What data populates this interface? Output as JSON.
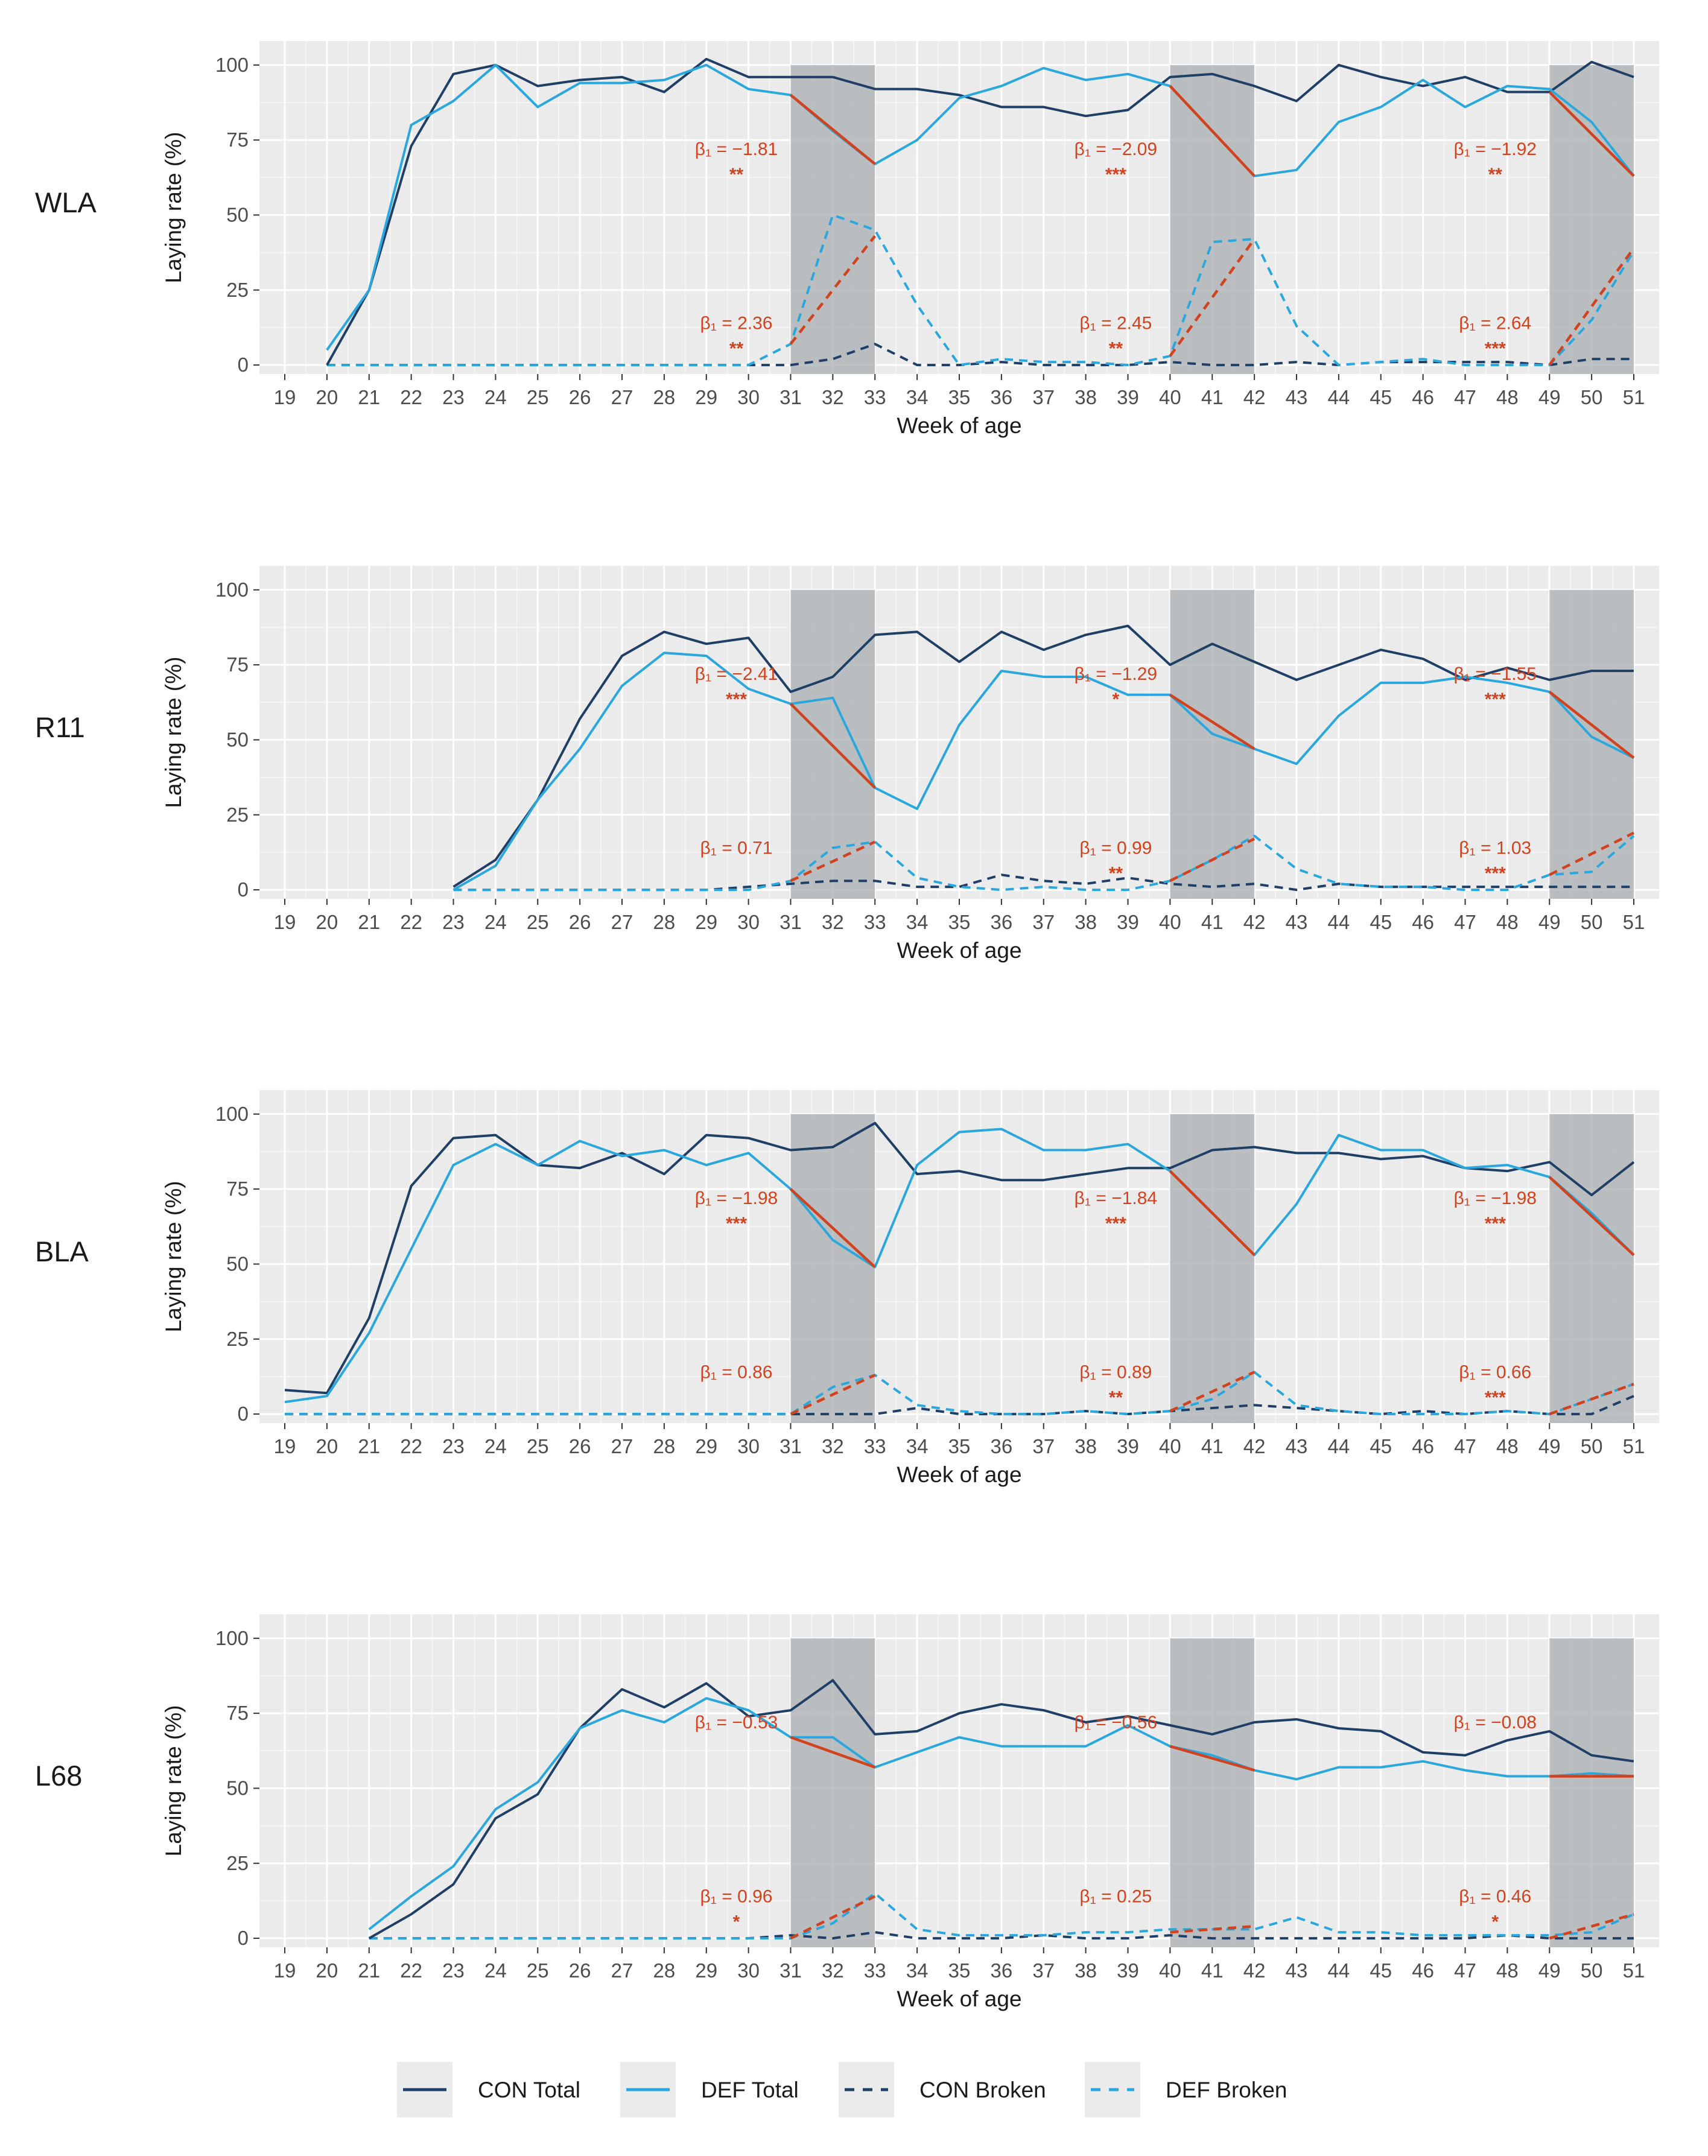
{
  "colors": {
    "panel_bg": "#EBEBEB",
    "grid": "#FFFFFF",
    "shade": "#A8AEB1",
    "con": "#1F3F66",
    "def": "#2AA7DC",
    "reg": "#D1421F",
    "axis_text": "#4D4D4D",
    "label_text": "#1A1A1A"
  },
  "chart_data": {
    "type": "line",
    "x_label": "Week of age",
    "y_label": "Laying rate (%)",
    "weeks": [
      19,
      20,
      21,
      22,
      23,
      24,
      25,
      26,
      27,
      28,
      29,
      30,
      31,
      32,
      33,
      34,
      35,
      36,
      37,
      38,
      39,
      40,
      41,
      42,
      43,
      44,
      45,
      46,
      47,
      48,
      49,
      50,
      51
    ],
    "y_ticks": [
      0,
      25,
      50,
      75,
      100
    ],
    "ylim": [
      -3,
      108
    ],
    "shaded_periods": [
      [
        31,
        33
      ],
      [
        40,
        42
      ],
      [
        49,
        51
      ]
    ],
    "legend": [
      {
        "key": "con_total",
        "label": "CON Total",
        "color": "#1F3F66",
        "dash": "solid"
      },
      {
        "key": "def_total",
        "label": "DEF Total",
        "color": "#2AA7DC",
        "dash": "solid"
      },
      {
        "key": "con_broken",
        "label": "CON Broken",
        "color": "#1F3F66",
        "dash": "dashed"
      },
      {
        "key": "def_broken",
        "label": "DEF Broken",
        "color": "#2AA7DC",
        "dash": "dashed"
      }
    ],
    "panels": [
      {
        "name": "WLA",
        "series": {
          "con_total": [
            null,
            0,
            25,
            73,
            97,
            100,
            93,
            95,
            96,
            91,
            102,
            96,
            96,
            96,
            92,
            92,
            90,
            86,
            86,
            83,
            85,
            96,
            97,
            93,
            88,
            100,
            96,
            93,
            96,
            91,
            91,
            101,
            96
          ],
          "def_total": [
            null,
            5,
            25,
            80,
            88,
            100,
            86,
            94,
            94,
            95,
            100,
            92,
            90,
            78,
            67,
            75,
            89,
            93,
            99,
            95,
            97,
            93,
            78,
            63,
            65,
            81,
            86,
            95,
            86,
            93,
            92,
            81,
            63
          ],
          "con_broken": [
            null,
            0,
            0,
            0,
            0,
            0,
            0,
            0,
            0,
            0,
            0,
            0,
            0,
            2,
            7,
            0,
            0,
            1,
            0,
            0,
            0,
            1,
            0,
            0,
            1,
            0,
            1,
            1,
            1,
            1,
            0,
            2,
            2
          ],
          "def_broken": [
            null,
            0,
            0,
            0,
            0,
            0,
            0,
            0,
            0,
            0,
            0,
            0,
            7,
            50,
            45,
            20,
            0,
            2,
            1,
            1,
            0,
            3,
            41,
            42,
            13,
            0,
            1,
            2,
            0,
            0,
            0,
            15,
            38
          ]
        },
        "regressions": [
          {
            "period": [
              31,
              33
            ],
            "kind": "total",
            "y": [
              90,
              67
            ],
            "beta": "β₁ = −1.81",
            "sig": "**"
          },
          {
            "period": [
              40,
              42
            ],
            "kind": "total",
            "y": [
              93,
              63
            ],
            "beta": "β₁ = −2.09",
            "sig": "***"
          },
          {
            "period": [
              49,
              51
            ],
            "kind": "total",
            "y": [
              91,
              63
            ],
            "beta": "β₁ = −1.92",
            "sig": "**"
          },
          {
            "period": [
              31,
              33
            ],
            "kind": "broken",
            "y": [
              7,
              43
            ],
            "beta": "β₁ = 2.36",
            "sig": "**"
          },
          {
            "period": [
              40,
              42
            ],
            "kind": "broken",
            "y": [
              3,
              42
            ],
            "beta": "β₁ = 2.45",
            "sig": "**"
          },
          {
            "period": [
              49,
              51
            ],
            "kind": "broken",
            "y": [
              0,
              39
            ],
            "beta": "β₁ = 2.64",
            "sig": "***"
          }
        ]
      },
      {
        "name": "R11",
        "series": {
          "con_total": [
            null,
            null,
            null,
            null,
            1,
            10,
            30,
            57,
            78,
            86,
            82,
            84,
            66,
            71,
            85,
            86,
            76,
            86,
            80,
            85,
            88,
            75,
            82,
            76,
            70,
            75,
            80,
            77,
            70,
            74,
            70,
            73,
            73
          ],
          "def_total": [
            null,
            null,
            null,
            null,
            0,
            8,
            30,
            47,
            68,
            79,
            78,
            67,
            62,
            64,
            34,
            27,
            55,
            73,
            71,
            71,
            65,
            65,
            52,
            47,
            42,
            58,
            69,
            69,
            71,
            69,
            66,
            51,
            44
          ],
          "con_broken": [
            null,
            null,
            null,
            null,
            0,
            0,
            0,
            0,
            0,
            0,
            0,
            1,
            2,
            3,
            3,
            1,
            1,
            5,
            3,
            2,
            4,
            2,
            1,
            2,
            0,
            2,
            1,
            1,
            1,
            1,
            1,
            1,
            1
          ],
          "def_broken": [
            null,
            null,
            null,
            null,
            0,
            0,
            0,
            0,
            0,
            0,
            0,
            0,
            3,
            14,
            16,
            4,
            1,
            0,
            1,
            0,
            0,
            3,
            10,
            18,
            7,
            2,
            1,
            1,
            0,
            0,
            5,
            6,
            18
          ]
        },
        "regressions": [
          {
            "period": [
              31,
              33
            ],
            "kind": "total",
            "y": [
              62,
              34
            ],
            "beta": "β₁ = −2.41",
            "sig": "***"
          },
          {
            "period": [
              40,
              42
            ],
            "kind": "total",
            "y": [
              65,
              47
            ],
            "beta": "β₁ = −1.29",
            "sig": "*"
          },
          {
            "period": [
              49,
              51
            ],
            "kind": "total",
            "y": [
              66,
              44
            ],
            "beta": "β₁ = −1.55",
            "sig": "***"
          },
          {
            "period": [
              31,
              33
            ],
            "kind": "broken",
            "y": [
              3,
              16
            ],
            "beta": "β₁ = 0.71",
            "sig": ""
          },
          {
            "period": [
              40,
              42
            ],
            "kind": "broken",
            "y": [
              3,
              17
            ],
            "beta": "β₁ = 0.99",
            "sig": "**"
          },
          {
            "period": [
              49,
              51
            ],
            "kind": "broken",
            "y": [
              5,
              19
            ],
            "beta": "β₁ = 1.03",
            "sig": "***"
          }
        ]
      },
      {
        "name": "BLA",
        "series": {
          "con_total": [
            8,
            7,
            32,
            76,
            92,
            93,
            83,
            82,
            87,
            80,
            93,
            92,
            88,
            89,
            97,
            80,
            81,
            78,
            78,
            80,
            82,
            82,
            88,
            89,
            87,
            87,
            85,
            86,
            82,
            81,
            84,
            73,
            84
          ],
          "def_total": [
            4,
            6,
            27,
            55,
            83,
            90,
            83,
            91,
            86,
            88,
            83,
            87,
            75,
            58,
            49,
            83,
            94,
            95,
            88,
            88,
            90,
            81,
            67,
            53,
            70,
            93,
            88,
            88,
            82,
            83,
            79,
            67,
            53
          ],
          "con_broken": [
            0,
            0,
            0,
            0,
            0,
            0,
            0,
            0,
            0,
            0,
            0,
            0,
            0,
            0,
            0,
            2,
            0,
            0,
            0,
            1,
            0,
            1,
            2,
            3,
            2,
            1,
            0,
            1,
            0,
            1,
            0,
            0,
            6
          ],
          "def_broken": [
            0,
            0,
            0,
            0,
            0,
            0,
            0,
            0,
            0,
            0,
            0,
            0,
            0,
            9,
            13,
            3,
            1,
            0,
            0,
            1,
            0,
            1,
            5,
            14,
            3,
            1,
            0,
            0,
            0,
            1,
            0,
            5,
            10
          ]
        },
        "regressions": [
          {
            "period": [
              31,
              33
            ],
            "kind": "total",
            "y": [
              75,
              49
            ],
            "beta": "β₁ = −1.98",
            "sig": "***"
          },
          {
            "period": [
              40,
              42
            ],
            "kind": "total",
            "y": [
              81,
              53
            ],
            "beta": "β₁ = −1.84",
            "sig": "***"
          },
          {
            "period": [
              49,
              51
            ],
            "kind": "total",
            "y": [
              79,
              53
            ],
            "beta": "β₁ = −1.98",
            "sig": "***"
          },
          {
            "period": [
              31,
              33
            ],
            "kind": "broken",
            "y": [
              0,
              13
            ],
            "beta": "β₁ = 0.86",
            "sig": ""
          },
          {
            "period": [
              40,
              42
            ],
            "kind": "broken",
            "y": [
              1,
              14
            ],
            "beta": "β₁ = 0.89",
            "sig": "**"
          },
          {
            "period": [
              49,
              51
            ],
            "kind": "broken",
            "y": [
              0,
              10
            ],
            "beta": "β₁ = 0.66",
            "sig": "***"
          }
        ]
      },
      {
        "name": "L68",
        "series": {
          "con_total": [
            null,
            null,
            0,
            8,
            18,
            40,
            48,
            70,
            83,
            77,
            85,
            74,
            76,
            86,
            68,
            69,
            75,
            78,
            76,
            72,
            74,
            71,
            68,
            72,
            73,
            70,
            69,
            62,
            61,
            66,
            69,
            61,
            59
          ],
          "def_total": [
            null,
            null,
            3,
            14,
            24,
            43,
            52,
            70,
            76,
            72,
            80,
            76,
            67,
            67,
            57,
            62,
            67,
            64,
            64,
            64,
            71,
            64,
            61,
            56,
            53,
            57,
            57,
            59,
            56,
            54,
            54,
            55,
            54
          ],
          "con_broken": [
            null,
            null,
            0,
            0,
            0,
            0,
            0,
            0,
            0,
            0,
            0,
            0,
            1,
            0,
            2,
            0,
            0,
            0,
            1,
            0,
            0,
            1,
            0,
            0,
            0,
            0,
            0,
            0,
            0,
            1,
            0,
            0,
            0
          ],
          "def_broken": [
            null,
            null,
            0,
            0,
            0,
            0,
            0,
            0,
            0,
            0,
            0,
            0,
            0,
            5,
            15,
            3,
            1,
            1,
            1,
            2,
            2,
            3,
            3,
            3,
            7,
            2,
            2,
            1,
            1,
            1,
            1,
            2,
            8
          ]
        },
        "regressions": [
          {
            "period": [
              31,
              33
            ],
            "kind": "total",
            "y": [
              67,
              57
            ],
            "beta": "β₁ = −0.53",
            "sig": ""
          },
          {
            "period": [
              40,
              42
            ],
            "kind": "total",
            "y": [
              64,
              56
            ],
            "beta": "β₁ = −0.56",
            "sig": ""
          },
          {
            "period": [
              49,
              51
            ],
            "kind": "total",
            "y": [
              54,
              54
            ],
            "beta": "β₁ = −0.08",
            "sig": ""
          },
          {
            "period": [
              31,
              33
            ],
            "kind": "broken",
            "y": [
              0,
              14
            ],
            "beta": "β₁ = 0.96",
            "sig": "*"
          },
          {
            "period": [
              40,
              42
            ],
            "kind": "broken",
            "y": [
              2,
              4
            ],
            "beta": "β₁ = 0.25",
            "sig": ""
          },
          {
            "period": [
              49,
              51
            ],
            "kind": "broken",
            "y": [
              0,
              8
            ],
            "beta": "β₁ = 0.46",
            "sig": "*"
          }
        ]
      }
    ]
  }
}
